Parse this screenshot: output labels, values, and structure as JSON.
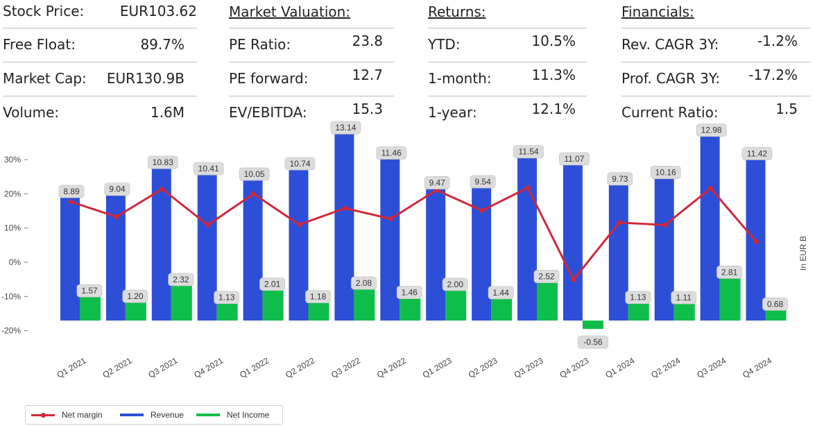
{
  "metrics": {
    "stock": [
      {
        "label": "Stock Price:",
        "value": "EUR103.62"
      },
      {
        "label": "Free Float:",
        "value": "89.7%"
      },
      {
        "label": "Market Cap:",
        "value": "EUR130.9B"
      },
      {
        "label": "Volume:",
        "value": "1.6M"
      }
    ],
    "valuation": {
      "title": "Market Valuation:",
      "rows": [
        {
          "label": "PE Ratio:",
          "value": "23.8"
        },
        {
          "label": "PE forward:",
          "value": "12.7"
        },
        {
          "label": "EV/EBITDA:",
          "value": "15.3"
        }
      ]
    },
    "returns": {
      "title": "Returns:",
      "rows": [
        {
          "label": "YTD:",
          "value": "10.5%"
        },
        {
          "label": "1-month:",
          "value": "11.3%"
        },
        {
          "label": "1-year:",
          "value": "12.1%"
        }
      ]
    },
    "financials": {
      "title": "Financials:",
      "rows": [
        {
          "label": "Rev. CAGR 3Y:",
          "value": "-1.2%"
        },
        {
          "label": "Prof. CAGR 3Y:",
          "value": "-17.2%"
        },
        {
          "label": "Current Ratio:",
          "value": "1.5"
        }
      ]
    }
  },
  "chart_data": {
    "type": "bar",
    "categories": [
      "Q1 2021",
      "Q2 2021",
      "Q3 2021",
      "Q4 2021",
      "Q1 2022",
      "Q2 2022",
      "Q3 2022",
      "Q4 2022",
      "Q1 2023",
      "Q2 2023",
      "Q3 2023",
      "Q4 2023",
      "Q1 2024",
      "Q2 2024",
      "Q3 2024",
      "Q4 2024"
    ],
    "series": [
      {
        "name": "Revenue",
        "axis": "right",
        "color": "#2d4fd7",
        "values": [
          8.89,
          9.04,
          10.83,
          10.41,
          10.05,
          10.74,
          13.14,
          11.46,
          9.47,
          9.54,
          11.54,
          11.07,
          9.73,
          10.16,
          12.98,
          11.42
        ]
      },
      {
        "name": "Net Income",
        "axis": "right",
        "color": "#0fbe4a",
        "values": [
          1.57,
          1.2,
          2.32,
          1.13,
          2.01,
          1.18,
          2.08,
          1.46,
          2.0,
          1.44,
          2.52,
          -0.56,
          1.13,
          1.11,
          2.81,
          0.68
        ]
      },
      {
        "name": "Net margin",
        "axis": "left",
        "type": "line",
        "color": "#d0273a",
        "values": [
          17.7,
          13.3,
          21.4,
          10.9,
          20.0,
          11.0,
          15.8,
          12.7,
          21.1,
          15.1,
          21.8,
          -5.1,
          11.6,
          10.9,
          21.6,
          6.0
        ]
      }
    ],
    "left_axis": {
      "ticks": [
        "30%",
        "20%",
        "10%",
        "0%",
        "-10%",
        "-20%"
      ],
      "tick_values": [
        30,
        20,
        10,
        0,
        -10,
        -20
      ]
    },
    "right_axis_label": "In EUR B",
    "legend": {
      "position": "bottom-left",
      "entries": [
        "Net margin",
        "Revenue",
        "Net Income"
      ]
    }
  }
}
